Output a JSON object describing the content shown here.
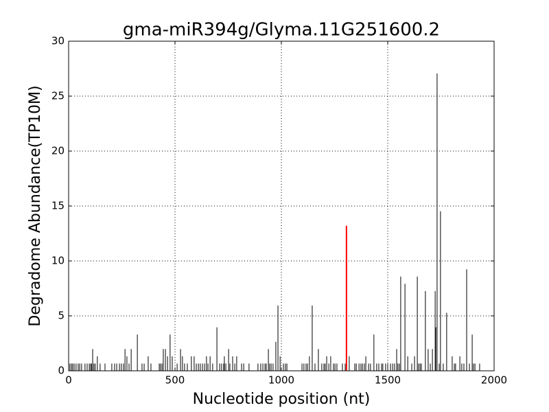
{
  "chart_data": {
    "type": "vlines",
    "title": "gma-miR394g/Glyma.11G251600.2",
    "xlabel": "Nucleotide position (nt)",
    "ylabel": "Degradome Abundance(TP10M)",
    "xlim": [
      0,
      2000
    ],
    "xticks": [
      0,
      500,
      1000,
      1500,
      2000
    ],
    "ylim": [
      0,
      30
    ],
    "yticks": [
      0,
      5,
      10,
      15,
      20,
      25,
      30
    ],
    "grid": true,
    "series": [
      {
        "color": "#000000",
        "x": [
          113,
          135,
          265,
          274,
          294,
          323,
          374,
          445,
          455,
          465,
          477,
          487,
          526,
          535,
          577,
          590,
          648,
          665,
          697,
          732,
          752,
          771,
          790,
          939,
          974,
          984,
          994,
          1132,
          1145,
          1174,
          1213,
          1232,
          1319,
          1397,
          1435,
          1542,
          1561,
          1581,
          1594,
          1626,
          1639,
          1677,
          1690,
          1710,
          1723,
          1726,
          1732,
          1748,
          1777,
          1803,
          1839,
          1871,
          1897,
          1903
        ],
        "values": [
          1.98,
          1.32,
          1.98,
          1.32,
          1.98,
          3.3,
          1.32,
          1.98,
          1.98,
          1.32,
          3.3,
          1.32,
          1.98,
          1.32,
          1.32,
          1.32,
          1.32,
          1.32,
          3.96,
          1.32,
          1.98,
          1.32,
          1.32,
          1.98,
          2.64,
          5.94,
          1.32,
          1.32,
          5.94,
          1.98,
          1.32,
          1.32,
          1.32,
          1.32,
          3.3,
          1.98,
          8.58,
          7.92,
          1.32,
          1.32,
          8.58,
          7.26,
          1.98,
          1.98,
          7.26,
          3.96,
          27.06,
          14.52,
          5.28,
          1.32,
          1.32,
          9.24,
          3.3,
          0.66
        ]
      },
      {
        "color": "#000000",
        "x": [
          0,
          6,
          13,
          19,
          26,
          35,
          45,
          52,
          61,
          77,
          87,
          97,
          103,
          108,
          119,
          125,
          148,
          171,
          203,
          216,
          226,
          239,
          248,
          258,
          284,
          345,
          355,
          387,
          426,
          432,
          439,
          510,
          545,
          558,
          600,
          610,
          619,
          629,
          639,
          655,
          677,
          710,
          719,
          729,
          739,
          758,
          781,
          813,
          823,
          848,
          890,
          903,
          913,
          923,
          929,
          945,
          952,
          961,
          1010,
          1019,
          1026,
          1097,
          1106,
          1116,
          1123,
          1158,
          1190,
          1200,
          1206,
          1223,
          1245,
          1252,
          1261,
          1287,
          1300,
          1345,
          1352,
          1365,
          1374,
          1381,
          1390,
          1410,
          1419,
          1448,
          1458,
          1471,
          1477,
          1490,
          1500,
          1513,
          1523,
          1532,
          1548,
          1555,
          1613,
          1645,
          1652,
          1658,
          1700,
          1742,
          1761,
          1813,
          1819,
          1848,
          1858,
          1884,
          1910,
          1932
        ],
        "values": [
          0.66,
          0.66,
          0.66,
          0.66,
          0.66,
          0.66,
          0.66,
          0.66,
          0.66,
          0.66,
          0.66,
          0.66,
          0.66,
          0.66,
          0.66,
          0.66,
          0.66,
          0.66,
          0.66,
          0.66,
          0.66,
          0.66,
          0.66,
          0.66,
          0.66,
          0.66,
          0.66,
          0.66,
          0.66,
          0.66,
          0.66,
          0.66,
          0.66,
          0.66,
          0.66,
          0.66,
          0.66,
          0.66,
          0.66,
          0.66,
          0.66,
          0.66,
          0.66,
          0.66,
          0.66,
          0.66,
          0.66,
          0.66,
          0.66,
          0.66,
          0.66,
          0.66,
          0.66,
          0.66,
          0.66,
          0.66,
          0.66,
          0.66,
          0.66,
          0.66,
          0.66,
          0.66,
          0.66,
          0.66,
          0.66,
          0.66,
          0.66,
          0.66,
          0.66,
          0.66,
          0.66,
          0.66,
          0.66,
          0.66,
          0.66,
          0.66,
          0.66,
          0.66,
          0.66,
          0.66,
          0.66,
          0.66,
          0.66,
          0.66,
          0.66,
          0.66,
          0.66,
          0.66,
          0.66,
          0.66,
          0.66,
          0.66,
          0.66,
          0.66,
          0.66,
          0.66,
          0.66,
          0.66,
          0.66,
          0.66,
          0.66,
          0.66,
          0.66,
          0.66,
          0.66,
          0.66,
          0.66,
          0.66
        ]
      },
      {
        "color": "#ff0000",
        "x": [
          1306
        ],
        "values": [
          13.2
        ]
      }
    ]
  }
}
